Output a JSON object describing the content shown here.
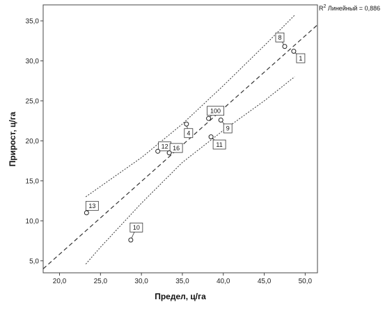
{
  "chart_data": {
    "type": "scatter",
    "title": "",
    "xlabel": "Предел, ц/га",
    "ylabel": "Прирост, ц/га",
    "xlim": [
      18.0,
      51.5
    ],
    "ylim": [
      3.5,
      37.0
    ],
    "xticks": [
      20.0,
      25.0,
      30.0,
      35.0,
      40.0,
      45.0,
      50.0
    ],
    "yticks": [
      5.0,
      10.0,
      15.0,
      20.0,
      25.0,
      30.0,
      35.0
    ],
    "xtick_labels": [
      "20,0",
      "25,0",
      "30,0",
      "35,0",
      "40,0",
      "45,0",
      "50,0"
    ],
    "ytick_labels": [
      "5,0",
      "10,0",
      "15,0",
      "20,0",
      "25,0",
      "30,0",
      "35,0"
    ],
    "grid": false,
    "annotation": {
      "sup": "2",
      "prefix": "R",
      "text": " Линейный = 0,886"
    },
    "points": [
      {
        "label": "13",
        "x": 23.3,
        "y": 11.0
      },
      {
        "label": "10",
        "x": 28.7,
        "y": 7.6
      },
      {
        "label": "12",
        "x": 32.0,
        "y": 18.7
      },
      {
        "label": "16",
        "x": 33.4,
        "y": 18.5
      },
      {
        "label": "4",
        "x": 35.5,
        "y": 22.1
      },
      {
        "label": "100",
        "x": 38.2,
        "y": 22.8
      },
      {
        "label": "11",
        "x": 38.5,
        "y": 20.5
      },
      {
        "label": "9",
        "x": 39.7,
        "y": 22.6
      },
      {
        "label": "8",
        "x": 47.5,
        "y": 31.8
      },
      {
        "label": "1",
        "x": 48.6,
        "y": 31.2
      }
    ],
    "fit_line": {
      "style": "dashed",
      "x": [
        18.0,
        51.5
      ],
      "y": [
        4.0,
        34.5
      ]
    },
    "ci_upper": {
      "style": "dotted",
      "x": [
        23.2,
        25.0,
        30.0,
        35.0,
        40.0,
        45.0,
        48.7
      ],
      "y": [
        13.0,
        14.3,
        17.9,
        22.1,
        26.9,
        31.9,
        35.7
      ]
    },
    "ci_lower": {
      "style": "dotted",
      "x": [
        23.2,
        25.0,
        30.0,
        35.0,
        40.0,
        45.0,
        48.7
      ],
      "y": [
        4.6,
        6.7,
        12.2,
        17.3,
        21.3,
        25.0,
        28.0
      ]
    }
  }
}
